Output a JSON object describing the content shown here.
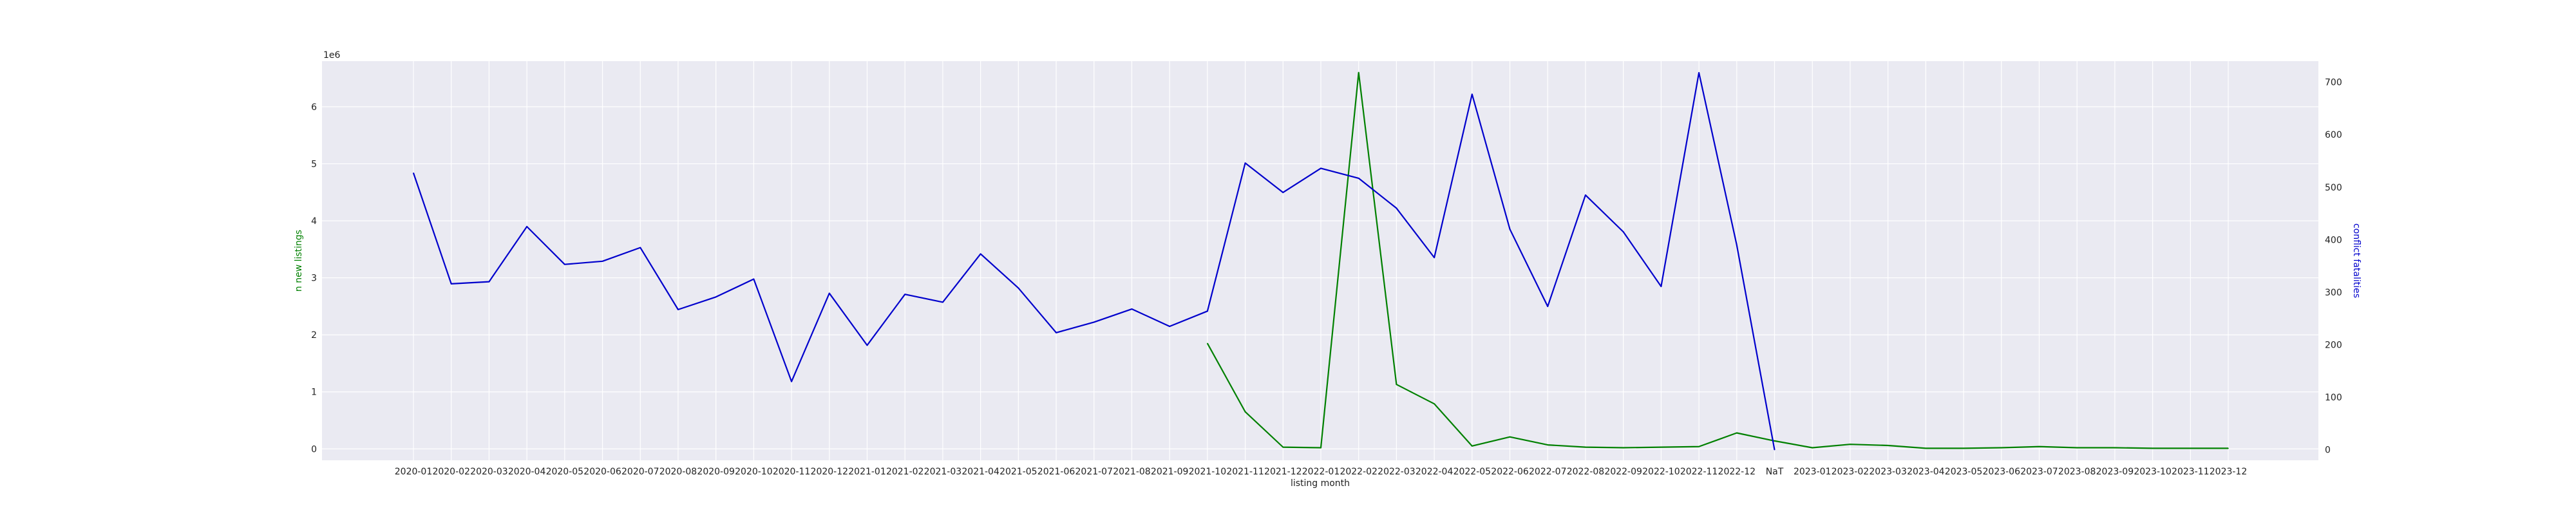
{
  "chart_data": {
    "type": "line",
    "xlabel": "listing month",
    "ylabel_left": "n new listings",
    "ylabel_right": "conflict fatalities",
    "left_offset_label": "1e6",
    "categories": [
      "2020-01",
      "2020-02",
      "2020-03",
      "2020-04",
      "2020-05",
      "2020-06",
      "2020-07",
      "2020-08",
      "2020-09",
      "2020-10",
      "2020-11",
      "2020-12",
      "2021-01",
      "2021-02",
      "2021-03",
      "2021-04",
      "2021-05",
      "2021-06",
      "2021-07",
      "2021-08",
      "2021-09",
      "2021-10",
      "2021-11",
      "2021-12",
      "2022-01",
      "2022-02",
      "2022-03",
      "2022-04",
      "2022-05",
      "2022-06",
      "2022-07",
      "2022-08",
      "2022-09",
      "2022-10",
      "2022-11",
      "2022-12",
      "NaT",
      "2023-01",
      "2023-02",
      "2023-03",
      "2023-04",
      "2023-05",
      "2023-06",
      "2023-07",
      "2023-08",
      "2023-09",
      "2023-10",
      "2023-11",
      "2023-12"
    ],
    "ylim_left": [
      -200000,
      6800000
    ],
    "ylim_right": [
      -20,
      740
    ],
    "yticks_left": [
      0,
      1000000,
      2000000,
      3000000,
      4000000,
      5000000,
      6000000
    ],
    "yticks_left_labels": [
      "0",
      "1",
      "2",
      "3",
      "4",
      "5",
      "6"
    ],
    "yticks_right": [
      0,
      100,
      200,
      300,
      400,
      500,
      600,
      700
    ],
    "yticks_right_labels": [
      "0",
      "100",
      "200",
      "300",
      "400",
      "500",
      "600",
      "700"
    ],
    "grid": true,
    "series": [
      {
        "axis": "left",
        "color": "#008000",
        "values": [
          null,
          null,
          null,
          null,
          null,
          null,
          null,
          null,
          null,
          null,
          null,
          null,
          null,
          null,
          null,
          null,
          null,
          null,
          null,
          null,
          null,
          1850000,
          650000,
          30000,
          20000,
          6600000,
          1130000,
          790000,
          50000,
          210000,
          70000,
          30000,
          20000,
          30000,
          40000,
          280000,
          140000,
          20000,
          80000,
          60000,
          10000,
          10000,
          20000,
          40000,
          20000,
          20000,
          10000,
          10000,
          10000
        ]
      },
      {
        "axis": "right",
        "color": "#0000cc",
        "values": [
          527,
          316,
          320,
          425,
          353,
          359,
          385,
          267,
          291,
          325,
          130,
          298,
          199,
          296,
          281,
          373,
          308,
          223,
          243,
          268,
          235,
          264,
          546,
          490,
          536,
          517,
          460,
          366,
          677,
          420,
          273,
          485,
          415,
          311,
          718,
          390,
          0,
          null,
          null,
          null,
          null,
          null,
          null,
          null,
          null,
          null,
          null,
          null,
          null
        ]
      }
    ]
  }
}
